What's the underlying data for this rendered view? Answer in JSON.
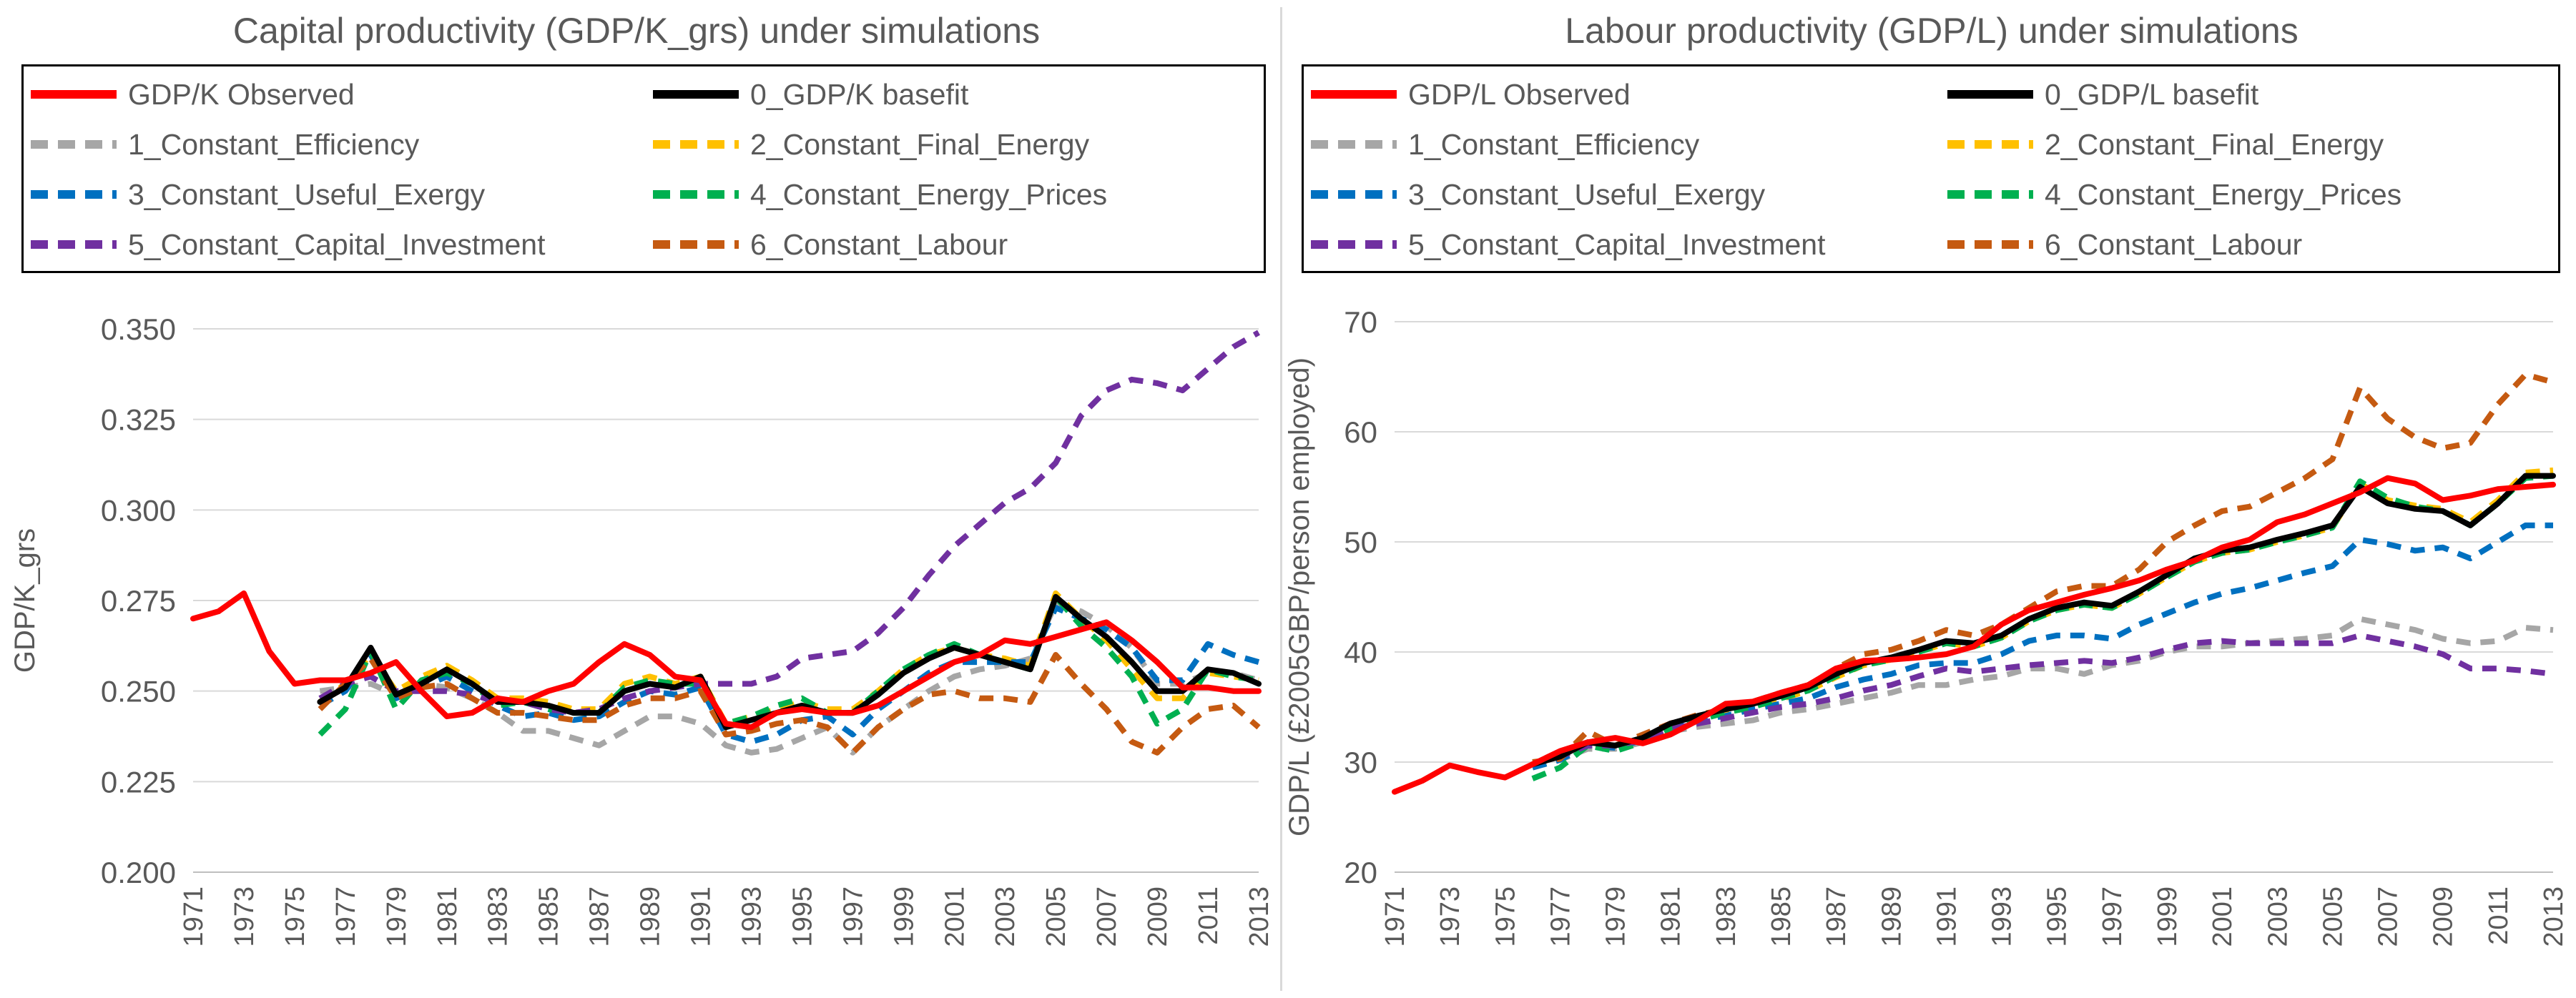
{
  "chart_data": [
    {
      "type": "line",
      "title": "Capital productivity (GDP/K_grs) under simulations",
      "xlabel": "",
      "ylabel": "GDP/K_grs",
      "ylim": [
        0.2,
        0.35
      ],
      "yticks": [
        "0.200",
        "0.225",
        "0.250",
        "0.275",
        "0.300",
        "0.325",
        "0.350"
      ],
      "ytick_values": [
        0.2,
        0.225,
        0.25,
        0.275,
        0.3,
        0.325,
        0.35
      ],
      "xticks": [
        "1971",
        "1973",
        "1975",
        "1977",
        "1979",
        "1981",
        "1983",
        "1985",
        "1987",
        "1989",
        "1991",
        "1993",
        "1995",
        "1997",
        "1999",
        "2001",
        "2003",
        "2005",
        "2007",
        "2009",
        "2011",
        "2013"
      ],
      "x_start": 1971,
      "x_end": 2013,
      "grid": true,
      "legend_position": "top",
      "series": [
        {
          "name": "GDP/K Observed",
          "color": "#ff0000",
          "dash": "solid",
          "x_start": 1971,
          "values": [
            0.27,
            0.272,
            0.277,
            0.261,
            0.252,
            0.253,
            0.253,
            0.255,
            0.258,
            0.25,
            0.243,
            0.244,
            0.248,
            0.247,
            0.25,
            0.252,
            0.258,
            0.263,
            0.26,
            0.254,
            0.253,
            0.241,
            0.24,
            0.244,
            0.245,
            0.244,
            0.244,
            0.246,
            0.25,
            0.254,
            0.258,
            0.26,
            0.264,
            0.263,
            0.265,
            0.267,
            0.269,
            0.264,
            0.258,
            0.251,
            0.251,
            0.25,
            0.25
          ]
        },
        {
          "name": "0_GDP/K basefit",
          "color": "#000000",
          "dash": "solid",
          "x_start": 1976,
          "values": [
            0.247,
            0.251,
            0.262,
            0.249,
            0.252,
            0.256,
            0.252,
            0.247,
            0.247,
            0.246,
            0.244,
            0.244,
            0.25,
            0.252,
            0.251,
            0.254,
            0.24,
            0.242,
            0.244,
            0.246,
            0.244,
            0.244,
            0.249,
            0.255,
            0.259,
            0.262,
            0.26,
            0.258,
            0.256,
            0.276,
            0.27,
            0.265,
            0.258,
            0.25,
            0.25,
            0.256,
            0.255,
            0.252
          ]
        },
        {
          "name": "1_Constant_Efficiency",
          "color": "#a6a6a6",
          "dash": "dashed",
          "x_start": 1976,
          "values": [
            0.25,
            0.251,
            0.252,
            0.249,
            0.252,
            0.251,
            0.248,
            0.244,
            0.239,
            0.239,
            0.237,
            0.235,
            0.239,
            0.243,
            0.243,
            0.241,
            0.235,
            0.233,
            0.234,
            0.237,
            0.24,
            0.233,
            0.24,
            0.245,
            0.25,
            0.254,
            0.256,
            0.257,
            0.259,
            0.274,
            0.272,
            0.268,
            0.262,
            0.252,
            0.252,
            0.255,
            0.255,
            0.253
          ]
        },
        {
          "name": "2_Constant_Final_Energy",
          "color": "#ffc000",
          "dash": "dashed",
          "x_start": 1976,
          "values": [
            0.247,
            0.252,
            0.26,
            0.25,
            0.254,
            0.257,
            0.253,
            0.248,
            0.248,
            0.247,
            0.245,
            0.245,
            0.252,
            0.254,
            0.252,
            0.254,
            0.241,
            0.243,
            0.245,
            0.247,
            0.245,
            0.245,
            0.25,
            0.256,
            0.26,
            0.262,
            0.26,
            0.259,
            0.257,
            0.277,
            0.27,
            0.264,
            0.256,
            0.248,
            0.248,
            0.255,
            0.254,
            0.253
          ]
        },
        {
          "name": "3_Constant_Useful_Exergy",
          "color": "#0070c0",
          "dash": "dashed",
          "x_start": 1976,
          "values": [
            0.246,
            0.25,
            0.26,
            0.248,
            0.251,
            0.254,
            0.25,
            0.246,
            0.243,
            0.244,
            0.242,
            0.243,
            0.247,
            0.25,
            0.249,
            0.251,
            0.238,
            0.236,
            0.238,
            0.242,
            0.243,
            0.238,
            0.245,
            0.25,
            0.255,
            0.258,
            0.258,
            0.258,
            0.258,
            0.273,
            0.27,
            0.267,
            0.262,
            0.253,
            0.253,
            0.263,
            0.26,
            0.258
          ]
        },
        {
          "name": "4_Constant_Energy_Prices",
          "color": "#00b050",
          "dash": "dashed",
          "x_start": 1976,
          "values": [
            0.238,
            0.245,
            0.261,
            0.245,
            0.253,
            0.255,
            0.252,
            0.246,
            0.247,
            0.245,
            0.244,
            0.244,
            0.251,
            0.253,
            0.252,
            0.252,
            0.241,
            0.243,
            0.246,
            0.248,
            0.244,
            0.244,
            0.25,
            0.256,
            0.26,
            0.263,
            0.26,
            0.258,
            0.256,
            0.276,
            0.268,
            0.262,
            0.254,
            0.241,
            0.245,
            0.256,
            0.254,
            0.253
          ]
        },
        {
          "name": "5_Constant_Capital_Investment",
          "color": "#7030a0",
          "dash": "dashed",
          "x_start": 1976,
          "values": [
            0.248,
            0.252,
            0.254,
            0.25,
            0.25,
            0.25,
            0.249,
            0.247,
            0.247,
            0.245,
            0.244,
            0.245,
            0.248,
            0.25,
            0.251,
            0.252,
            0.252,
            0.252,
            0.254,
            0.259,
            0.26,
            0.261,
            0.266,
            0.273,
            0.282,
            0.29,
            0.296,
            0.302,
            0.306,
            0.313,
            0.326,
            0.333,
            0.336,
            0.335,
            0.333,
            0.339,
            0.345,
            0.349
          ]
        },
        {
          "name": "6_Constant_Labour",
          "color": "#c55a11",
          "dash": "dashed",
          "x_start": 1976,
          "values": [
            0.245,
            0.252,
            0.259,
            0.248,
            0.251,
            0.252,
            0.248,
            0.244,
            0.244,
            0.243,
            0.242,
            0.242,
            0.246,
            0.248,
            0.248,
            0.25,
            0.238,
            0.239,
            0.241,
            0.242,
            0.24,
            0.233,
            0.24,
            0.245,
            0.249,
            0.25,
            0.248,
            0.248,
            0.247,
            0.26,
            0.252,
            0.245,
            0.236,
            0.233,
            0.24,
            0.245,
            0.246,
            0.24
          ]
        }
      ]
    },
    {
      "type": "line",
      "title": "Labour productivity (GDP/L) under simulations",
      "xlabel": "",
      "ylabel": "GDP/L (£2005GBP/person employed)",
      "ylim": [
        20,
        70
      ],
      "yticks": [
        "20",
        "30",
        "40",
        "50",
        "60",
        "70"
      ],
      "ytick_values": [
        20,
        30,
        40,
        50,
        60,
        70
      ],
      "xticks": [
        "1971",
        "1973",
        "1975",
        "1977",
        "1979",
        "1981",
        "1983",
        "1985",
        "1987",
        "1989",
        "1991",
        "1993",
        "1995",
        "1997",
        "1999",
        "2001",
        "2003",
        "2005",
        "2007",
        "2009",
        "2011",
        "2013"
      ],
      "x_start": 1971,
      "x_end": 2013,
      "grid": true,
      "legend_position": "top",
      "series": [
        {
          "name": "GDP/L Observed",
          "color": "#ff0000",
          "dash": "solid",
          "x_start": 1971,
          "values": [
            27.3,
            28.3,
            29.7,
            29.1,
            28.6,
            29.8,
            31.0,
            31.8,
            32.2,
            31.7,
            32.5,
            33.8,
            35.3,
            35.5,
            36.3,
            37.0,
            38.5,
            39.2,
            39.3,
            39.5,
            39.8,
            40.5,
            42.5,
            43.8,
            44.5,
            45.2,
            45.8,
            46.5,
            47.5,
            48.3,
            49.5,
            50.2,
            51.8,
            52.5,
            53.5,
            54.5,
            55.8,
            55.3,
            53.8,
            54.2,
            54.8,
            55.0,
            55.2
          ]
        },
        {
          "name": "0_GDP/L basefit",
          "color": "#000000",
          "dash": "solid",
          "x_start": 1976,
          "values": [
            29.8,
            30.5,
            31.8,
            31.5,
            32.2,
            33.5,
            34.2,
            34.8,
            35.3,
            36.0,
            36.8,
            38.0,
            39.0,
            39.5,
            40.2,
            41.0,
            40.8,
            41.5,
            43.0,
            44.0,
            44.5,
            44.2,
            45.5,
            47.0,
            48.5,
            49.2,
            49.5,
            50.2,
            50.8,
            51.5,
            55.0,
            53.5,
            53.0,
            52.8,
            51.5,
            53.5,
            56.0,
            56.0
          ]
        },
        {
          "name": "1_Constant_Efficiency",
          "color": "#a6a6a6",
          "dash": "dashed",
          "x_start": 1976,
          "values": [
            29.5,
            30.2,
            31.2,
            31.2,
            31.8,
            32.8,
            33.2,
            33.5,
            33.8,
            34.5,
            34.8,
            35.3,
            35.8,
            36.3,
            37.0,
            37.0,
            37.5,
            37.8,
            38.5,
            38.5,
            38.0,
            38.8,
            39.2,
            40.0,
            40.5,
            40.5,
            40.8,
            41.0,
            41.2,
            41.5,
            43.0,
            42.5,
            42.0,
            41.2,
            40.8,
            41.0,
            42.2,
            42.0
          ]
        },
        {
          "name": "2_Constant_Final_Energy",
          "color": "#ffc000",
          "dash": "dashed",
          "x_start": 1976,
          "values": [
            29.5,
            30.3,
            31.8,
            31.4,
            32.0,
            33.3,
            34.0,
            34.5,
            35.0,
            35.7,
            36.5,
            37.7,
            38.8,
            39.3,
            40.0,
            40.8,
            40.5,
            41.3,
            42.8,
            43.8,
            44.3,
            44.0,
            45.3,
            46.8,
            48.2,
            49.0,
            49.3,
            50.0,
            50.6,
            51.3,
            55.3,
            53.8,
            53.3,
            53.0,
            51.8,
            53.8,
            56.3,
            56.5
          ]
        },
        {
          "name": "3_Constant_Useful_Exergy",
          "color": "#0070c0",
          "dash": "dashed",
          "x_start": 1976,
          "values": [
            29.5,
            30.2,
            31.5,
            31.3,
            32.0,
            33.0,
            33.8,
            34.2,
            34.8,
            35.3,
            35.8,
            36.8,
            37.5,
            38.0,
            38.8,
            39.0,
            39.0,
            39.8,
            41.0,
            41.5,
            41.5,
            41.2,
            42.5,
            43.5,
            44.5,
            45.3,
            45.8,
            46.5,
            47.2,
            47.8,
            50.2,
            49.8,
            49.2,
            49.5,
            48.5,
            50.0,
            51.5,
            51.5
          ]
        },
        {
          "name": "4_Constant_Energy_Prices",
          "color": "#00b050",
          "dash": "dashed",
          "x_start": 1976,
          "values": [
            28.5,
            29.5,
            31.5,
            31.0,
            31.8,
            33.0,
            33.8,
            34.5,
            35.0,
            35.8,
            36.5,
            37.8,
            38.8,
            39.3,
            40.0,
            40.8,
            40.5,
            41.3,
            42.8,
            43.8,
            44.3,
            44.0,
            45.3,
            46.8,
            48.2,
            49.0,
            49.3,
            50.0,
            50.6,
            51.3,
            55.5,
            54.0,
            53.2,
            52.8,
            51.5,
            53.5,
            55.8,
            56.0
          ]
        },
        {
          "name": "5_Constant_Capital_Investment",
          "color": "#7030a0",
          "dash": "dashed",
          "x_start": 1976,
          "values": [
            29.8,
            30.5,
            31.5,
            31.5,
            32.0,
            33.0,
            33.5,
            34.0,
            34.5,
            35.0,
            35.3,
            35.8,
            36.5,
            37.0,
            37.8,
            38.5,
            38.2,
            38.5,
            38.8,
            39.0,
            39.2,
            39.0,
            39.5,
            40.2,
            40.8,
            41.0,
            40.8,
            40.8,
            40.8,
            40.8,
            41.5,
            41.0,
            40.5,
            39.8,
            38.5,
            38.5,
            38.3,
            38.0
          ]
        },
        {
          "name": "6_Constant_Labour",
          "color": "#c55a11",
          "dash": "dashed",
          "x_start": 1976,
          "values": [
            30.0,
            30.3,
            32.8,
            31.5,
            32.5,
            33.5,
            34.3,
            34.8,
            35.5,
            36.3,
            37.0,
            38.5,
            39.8,
            40.2,
            41.0,
            42.0,
            41.5,
            42.5,
            44.0,
            45.5,
            46.0,
            46.0,
            47.5,
            50.0,
            51.5,
            52.8,
            53.2,
            54.5,
            55.8,
            57.5,
            64.0,
            61.2,
            59.5,
            58.5,
            59.0,
            62.5,
            65.2,
            64.5
          ]
        }
      ]
    }
  ]
}
